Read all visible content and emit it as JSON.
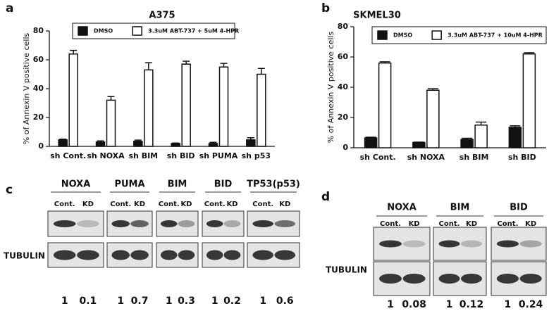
{
  "chart_data": [
    {
      "type": "bar",
      "panel_label": "a",
      "title": "A375",
      "y_label": "% of Annexin V positive cells",
      "categories": [
        "sh Cont.",
        "sh NOXA",
        "sh BIM",
        "sh BID",
        "sh PUMA",
        "sh p53"
      ],
      "series": [
        {
          "name": "DMSO",
          "color": "#111111",
          "values": [
            4.5,
            3,
            3.5,
            2,
            2,
            4.5
          ],
          "errors": [
            0.5,
            0.8,
            0.8,
            0.3,
            0.8,
            1.5
          ]
        },
        {
          "name": "3.3uM ABT-737 + 5uM 4-HPR",
          "color": "#ffffff",
          "values": [
            64,
            32,
            53,
            57,
            55,
            50
          ],
          "errors": [
            2.5,
            2.5,
            5,
            2,
            2.5,
            4
          ]
        }
      ],
      "ylim": [
        0,
        80
      ],
      "yticks": [
        0,
        20,
        40,
        60,
        80
      ]
    },
    {
      "type": "bar",
      "panel_label": "b",
      "title": "SKMEL30",
      "y_label": "% of Annexin V positive cells",
      "categories": [
        "sh Cont.",
        "sh NOXA",
        "sh BIM",
        "sh BID"
      ],
      "series": [
        {
          "name": "DMSO",
          "color": "#111111",
          "values": [
            6.5,
            3.5,
            5.5,
            13.5
          ],
          "errors": [
            0.5,
            0.2,
            0.8,
            1
          ]
        },
        {
          "name": "3.3uM ABT-737 + 10uM 4-HPR",
          "color": "#ffffff",
          "values": [
            56,
            38,
            15,
            62
          ],
          "errors": [
            0.8,
            1,
            2,
            0.8
          ]
        }
      ],
      "ylim": [
        0,
        80
      ],
      "yticks": [
        0,
        20,
        40,
        60,
        80
      ]
    }
  ],
  "blots": [
    {
      "label": "c",
      "proteins": [
        "NOXA",
        "PUMA",
        "BIM",
        "BID",
        "TP53(p53)"
      ],
      "lanes": [
        "Cont.",
        "KD"
      ],
      "loading_control": "TUBULIN",
      "quantification": [
        [
          1,
          0.1
        ],
        [
          1,
          0.7
        ],
        [
          1,
          0.3
        ],
        [
          1,
          0.2
        ],
        [
          1,
          0.6
        ]
      ]
    },
    {
      "label": "d",
      "proteins": [
        "NOXA",
        "BIM",
        "BID"
      ],
      "lanes": [
        "Cont.",
        "KD"
      ],
      "loading_control": "TUBULIN",
      "quantification": [
        [
          1,
          0.08
        ],
        [
          1,
          0.12
        ],
        [
          1,
          0.24
        ]
      ]
    }
  ]
}
